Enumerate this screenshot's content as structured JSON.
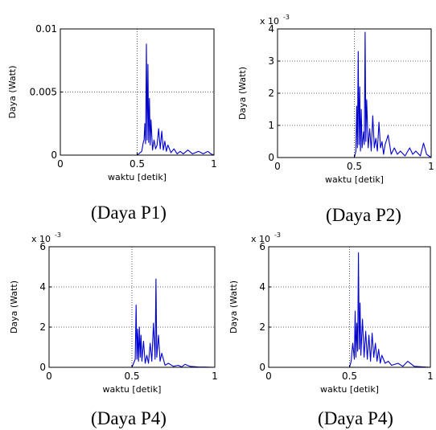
{
  "chart_data": [
    {
      "type": "line",
      "caption": "(Daya P1)",
      "xlabel": "waktu [detik]",
      "ylabel": "Daya (Watt)",
      "xlim": [
        0,
        1
      ],
      "ylim": [
        0,
        0.01
      ],
      "xticks": [
        "0",
        "0.5",
        "1"
      ],
      "yticks": [
        "0",
        "0.005",
        "0.01"
      ],
      "multiplier": "",
      "multiplier_exp": "",
      "grid": true,
      "color": "#0000cc",
      "series": [
        {
          "x": [
            0,
            0.5,
            0.53,
            0.54,
            0.545,
            0.55,
            0.555,
            0.56,
            0.565,
            0.57,
            0.575,
            0.58,
            0.585,
            0.59,
            0.6,
            0.61,
            0.62,
            0.63,
            0.64,
            0.65,
            0.66,
            0.67,
            0.68,
            0.69,
            0.7,
            0.72,
            0.74,
            0.76,
            0.78,
            0.8,
            0.83,
            0.86,
            0.9,
            0.93,
            0.96,
            0.97,
            0.98,
            1.0
          ],
          "y": [
            0,
            0,
            0.0003,
            0.001,
            0.0012,
            0.0025,
            0.0009,
            0.0088,
            0.0012,
            0.0072,
            0.001,
            0.0045,
            0.0008,
            0.0028,
            0.0004,
            0.0012,
            0.0005,
            0.0008,
            0.0021,
            0.0005,
            0.0019,
            0.0004,
            0.0011,
            0.0003,
            0.0008,
            0.0002,
            0.0005,
            0.0001,
            0.0003,
            0.0001,
            0.0004,
            0.0001,
            0.0003,
            0.0001,
            0.0003,
            0.0002,
            0.0001,
            0
          ]
        }
      ]
    },
    {
      "type": "line",
      "caption": "(Daya P2)",
      "xlabel": "waktu [detik]",
      "ylabel": "Daya (Watt)",
      "xlim": [
        0,
        1
      ],
      "ylim": [
        0,
        4
      ],
      "xticks": [
        "0",
        "0.5",
        "1"
      ],
      "yticks": [
        "0",
        "1",
        "2",
        "3",
        "4"
      ],
      "multiplier": "x 10",
      "multiplier_exp": "-3",
      "grid": true,
      "color": "#0000cc",
      "series": [
        {
          "x": [
            0,
            0.5,
            0.51,
            0.515,
            0.52,
            0.525,
            0.53,
            0.535,
            0.54,
            0.545,
            0.55,
            0.56,
            0.565,
            0.57,
            0.575,
            0.58,
            0.59,
            0.6,
            0.61,
            0.62,
            0.63,
            0.64,
            0.65,
            0.66,
            0.67,
            0.68,
            0.69,
            0.7,
            0.72,
            0.74,
            0.76,
            0.78,
            0.8,
            0.83,
            0.86,
            0.88,
            0.9,
            0.93,
            0.95,
            0.97,
            1.0
          ],
          "y": [
            0,
            0,
            0.2,
            1.6,
            0.3,
            3.3,
            0.4,
            2.2,
            0.2,
            1.5,
            0.3,
            0.8,
            0.4,
            3.9,
            0.5,
            1.8,
            0.3,
            0.9,
            0.2,
            1.3,
            0.3,
            0.6,
            0.2,
            1.1,
            0.3,
            0.5,
            0.1,
            0.4,
            0.7,
            0.1,
            0.3,
            0.1,
            0.2,
            0.05,
            0.3,
            0.1,
            0.2,
            0.05,
            0.45,
            0.1,
            0
          ]
        }
      ]
    },
    {
      "type": "line",
      "caption": "(Daya P4)",
      "xlabel": "waktu [detik]",
      "ylabel": "Daya (Watt)",
      "xlim": [
        0,
        1
      ],
      "ylim": [
        0,
        6
      ],
      "xticks": [
        "0",
        "0.5",
        "1"
      ],
      "yticks": [
        "0",
        "2",
        "4",
        "6"
      ],
      "multiplier": "x 10",
      "multiplier_exp": "-3",
      "grid": true,
      "color": "#0000cc",
      "series": [
        {
          "x": [
            0,
            0.5,
            0.51,
            0.52,
            0.525,
            0.53,
            0.535,
            0.54,
            0.545,
            0.55,
            0.555,
            0.56,
            0.57,
            0.58,
            0.59,
            0.6,
            0.61,
            0.62,
            0.63,
            0.64,
            0.645,
            0.65,
            0.66,
            0.67,
            0.68,
            0.7,
            0.72,
            0.75,
            0.78,
            0.8,
            0.82,
            0.85,
            0.9,
            1.0
          ],
          "y": [
            0,
            0,
            0.2,
            0.4,
            3.1,
            0.4,
            1.9,
            0.3,
            2.0,
            0.5,
            1.6,
            0.3,
            1.3,
            0.2,
            0.6,
            0.2,
            1.2,
            0.3,
            2.2,
            0.4,
            4.4,
            0.5,
            1.6,
            0.3,
            0.7,
            0.1,
            0.2,
            0.05,
            0.1,
            0.02,
            0.15,
            0.05,
            0.02,
            0
          ]
        }
      ]
    },
    {
      "type": "line",
      "caption": "(Daya P4)",
      "xlabel": "waktu [detik]",
      "ylabel": "Daya (Watt)",
      "xlim": [
        0,
        1
      ],
      "ylim": [
        0,
        6
      ],
      "xticks": [
        "0",
        "0.5",
        "1"
      ],
      "yticks": [
        "0",
        "2",
        "4",
        "6"
      ],
      "multiplier": "x 10",
      "multiplier_exp": "-3",
      "grid": true,
      "color": "#0000cc",
      "series": [
        {
          "x": [
            0,
            0.5,
            0.51,
            0.52,
            0.53,
            0.535,
            0.54,
            0.545,
            0.55,
            0.555,
            0.56,
            0.565,
            0.57,
            0.58,
            0.59,
            0.6,
            0.61,
            0.62,
            0.63,
            0.64,
            0.65,
            0.66,
            0.67,
            0.68,
            0.69,
            0.7,
            0.72,
            0.74,
            0.76,
            0.8,
            0.83,
            0.86,
            0.9,
            1.0
          ],
          "y": [
            0,
            0,
            0.3,
            1.2,
            0.4,
            2.8,
            0.5,
            2.2,
            0.8,
            5.7,
            0.9,
            3.2,
            0.6,
            2.4,
            0.5,
            1.8,
            0.4,
            1.6,
            0.3,
            1.7,
            0.5,
            1.2,
            0.3,
            0.9,
            0.2,
            0.6,
            0.2,
            0.3,
            0.1,
            0.2,
            0.05,
            0.3,
            0.05,
            0
          ]
        }
      ]
    }
  ]
}
